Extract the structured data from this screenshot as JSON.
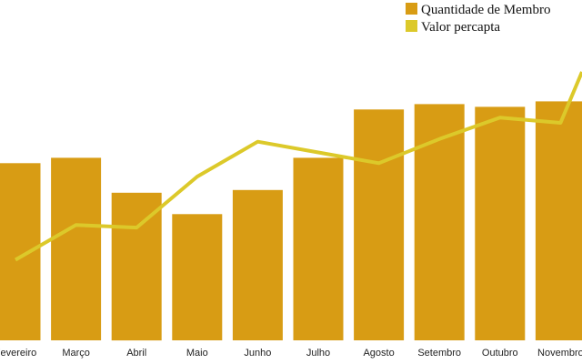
{
  "chart_data": {
    "type": "bar",
    "categories": [
      "Fevereiro",
      "Março",
      "Abril",
      "Maio",
      "Junho",
      "Julho",
      "Agosto",
      "Setembro",
      "Outubro",
      "Novembro"
    ],
    "series": [
      {
        "name": "Quantidade de Membros",
        "type": "bar",
        "color": "#d89c14",
        "values": [
          66,
          68,
          55,
          47,
          56,
          68,
          86,
          88,
          87,
          89
        ]
      },
      {
        "name": "Valor percapta",
        "type": "line",
        "color": "#dcc92a",
        "values": [
          30,
          43,
          42,
          61,
          74,
          70,
          66,
          75,
          83,
          81
        ]
      }
    ],
    "ylim": [
      0,
      120
    ],
    "grid": false,
    "legend_position": "top-right",
    "clip_end_right": 100
  },
  "legend": {
    "bars_label": "Quantidade de Membro",
    "line_label": "Valor percapta"
  }
}
